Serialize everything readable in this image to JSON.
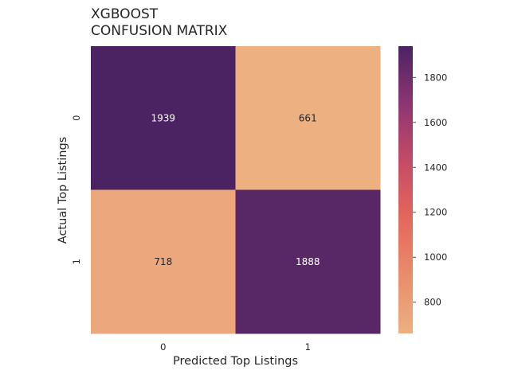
{
  "chart_data": {
    "type": "heatmap",
    "title_lines": [
      "XGBOOST",
      "CONFUSION MATRIX"
    ],
    "xlabel": "Predicted Top Listings",
    "ylabel": "Actual Top Listings",
    "x_categories": [
      "0",
      "1"
    ],
    "y_categories": [
      "0",
      "1"
    ],
    "values": [
      [
        1939,
        661
      ],
      [
        718,
        1888
      ]
    ],
    "colorbar": {
      "colormap": "flare",
      "range": [
        661,
        1939
      ],
      "ticks": [
        800,
        1000,
        1200,
        1400,
        1600,
        1800
      ],
      "tick_labels": [
        "800",
        "1000",
        "1200",
        "1400",
        "1600",
        "1800"
      ]
    },
    "grid": false
  }
}
